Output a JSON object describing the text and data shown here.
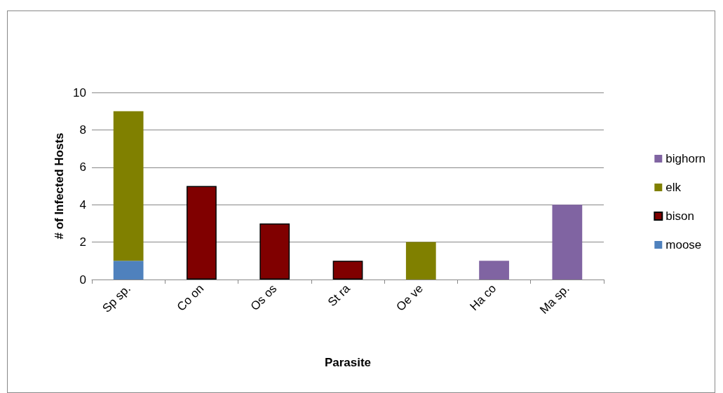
{
  "chart_data": {
    "type": "bar",
    "stacked": true,
    "xlabel": "Parasite",
    "ylabel": "# of Infected Hosts",
    "categories": [
      "Sp sp.",
      "Co on",
      "Os os",
      "St ra",
      "Oe ve",
      "Ha co",
      "Ma sp."
    ],
    "series": [
      {
        "name": "moose",
        "color": "#4f81bd",
        "values": [
          1,
          null,
          null,
          null,
          null,
          null,
          null
        ]
      },
      {
        "name": "bison",
        "color": "#800000",
        "values": [
          null,
          5,
          3,
          1,
          null,
          null,
          null
        ]
      },
      {
        "name": "elk",
        "color": "#808000",
        "values": [
          8,
          null,
          null,
          null,
          2,
          null,
          null
        ]
      },
      {
        "name": "bighorn",
        "color": "#8064a2",
        "values": [
          null,
          null,
          null,
          null,
          null,
          1,
          4
        ]
      }
    ],
    "ylim": [
      0,
      10
    ],
    "yticks": [
      0,
      2,
      4,
      6,
      8,
      10
    ],
    "grid": "y",
    "legend": "right"
  }
}
